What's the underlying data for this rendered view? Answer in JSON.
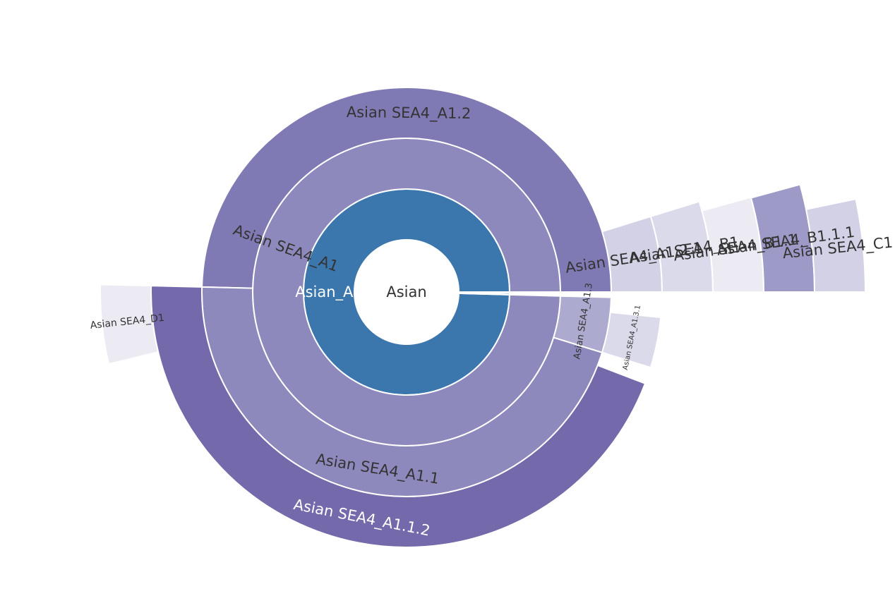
{
  "chart_data": {
    "type": "sunburst",
    "root": "Asian",
    "nodes": [
      {
        "id": "asian",
        "label": "Asian",
        "parent": "",
        "depth": 0,
        "start": 0,
        "end": 360,
        "color": "#ffffff",
        "text_color": "#333333"
      },
      {
        "id": "a1",
        "label": "Asian_A1",
        "parent": "asian",
        "depth": 1,
        "start": 0,
        "end": 358.5,
        "color": "#3b76ad",
        "text_color": "#ffffff"
      },
      {
        "id": "a1_blue_sliver",
        "label": "",
        "parent": "asian",
        "depth": 1,
        "start": 358.5,
        "end": 359.4,
        "color": "#2e6da4",
        "text_color": "#ffffff"
      },
      {
        "id": "a1_red_sliver",
        "label": "",
        "parent": "asian",
        "depth": 1,
        "start": 359.4,
        "end": 360,
        "color": "#d9534f",
        "text_color": "#ffffff"
      },
      {
        "id": "sea4_a1",
        "label": "Asian SEA4_A1",
        "parent": "a1",
        "depth": 2,
        "start": 0,
        "end": 358.5,
        "color": "#8e89bd",
        "text_color": "#333333"
      },
      {
        "id": "sea4_a1_2",
        "label": "Asian SEA4_A1.2",
        "parent": "sea4_a1",
        "depth": 3,
        "start": 0,
        "end": 178.6,
        "color": "#7f79b4",
        "text_color": "#333333"
      },
      {
        "id": "sea4_a1_1",
        "label": "Asian SEA4_A1.1",
        "parent": "sea4_a1",
        "depth": 3,
        "start": 178.6,
        "end": 342.8,
        "color": "#8e89bd",
        "text_color": "#333333"
      },
      {
        "id": "sea4_a1_3",
        "label": "Asian SEA4_A1.3",
        "parent": "sea4_a1",
        "depth": 3,
        "start": 342.8,
        "end": 358.5,
        "color": "#adaacf",
        "text_color": "#333333"
      },
      {
        "id": "sea4_a1_2_1",
        "label": "Asian SEA4_A1.2.1",
        "parent": "sea4_a1_2",
        "depth": 4,
        "start": 0,
        "end": 17.2,
        "color": "#d2d1e6",
        "text_color": "#333333"
      },
      {
        "id": "sea4_b1",
        "label": "Asian SEA4_B1",
        "parent": "sea4_a1_2",
        "depth": 5,
        "start": 0,
        "end": 17.2,
        "color": "#dbdaea",
        "text_color": "#333333"
      },
      {
        "id": "sea4_b1_1",
        "label": "Asian SEA4_B1.1",
        "parent": "sea4_b1",
        "depth": 6,
        "start": 0,
        "end": 15.4,
        "color": "#ecebf4",
        "text_color": "#333333"
      },
      {
        "id": "sea4_b1_1_1",
        "label": "Asian SEA4_B1.1.1",
        "parent": "sea4_b1_1",
        "depth": 7,
        "start": 0,
        "end": 15.3,
        "color": "#9e9ac8",
        "text_color": "#333333"
      },
      {
        "id": "sea4_c1",
        "label": "Asian SEA4_C1",
        "parent": "sea4_b1_1_1",
        "depth": 8,
        "start": 0,
        "end": 11.7,
        "color": "#d2d1e6",
        "text_color": "#333333"
      },
      {
        "id": "sea4_a1_1_2",
        "label": "Asian SEA4_A1.1.2",
        "parent": "sea4_a1_1",
        "depth": 4,
        "start": 178.6,
        "end": 339.0,
        "color": "#7369ab",
        "text_color": "#ffffff"
      },
      {
        "id": "sea4_d1",
        "label": "Asian SEA4_D1",
        "parent": "sea4_a1_1_2",
        "depth": 5,
        "start": 178.6,
        "end": 193.6,
        "color": "#ecebf4",
        "text_color": "#333333"
      },
      {
        "id": "sea4_a1_3_1",
        "label": "Asian SEA4_A1.3.1",
        "parent": "sea4_a1_3",
        "depth": 4,
        "start": 342.8,
        "end": 354.3,
        "color": "#dbdaea",
        "text_color": "#333333"
      }
    ]
  }
}
